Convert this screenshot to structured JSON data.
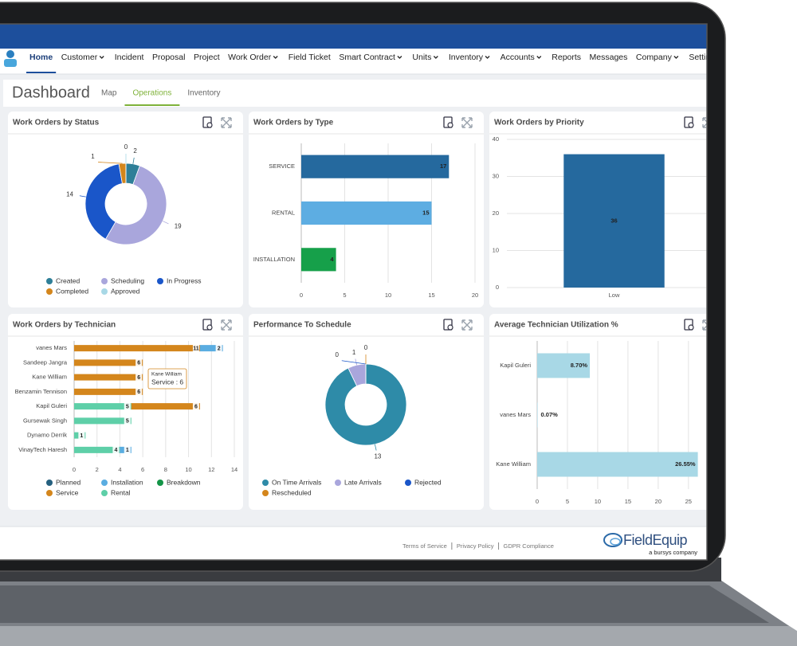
{
  "nav": {
    "items": [
      {
        "label": "Home"
      },
      {
        "label": "Customer",
        "dropdown": true
      },
      {
        "label": "Incident"
      },
      {
        "label": "Proposal"
      },
      {
        "label": "Project"
      },
      {
        "label": "Work Order",
        "dropdown": true
      },
      {
        "label": "Field Ticket"
      },
      {
        "label": "Smart Contract",
        "dropdown": true
      },
      {
        "label": "Units",
        "dropdown": true
      },
      {
        "label": "Inventory",
        "dropdown": true
      },
      {
        "label": "Accounts",
        "dropdown": true
      },
      {
        "label": "Reports"
      },
      {
        "label": "Messages"
      },
      {
        "label": "Company",
        "dropdown": true
      },
      {
        "label": "Settings"
      }
    ]
  },
  "header": {
    "title": "Dashboard",
    "tabs": [
      "Map",
      "Operations",
      "Inventory"
    ]
  },
  "chart_data": [
    {
      "type": "donut",
      "title": "Work Orders by Status",
      "series": [
        {
          "name": "Created",
          "color": "#2e7f98",
          "values": [
            2
          ]
        },
        {
          "name": "Scheduling",
          "color": "#a9a6dc",
          "values": [
            19
          ]
        },
        {
          "name": "In Progress",
          "color": "#1a56c9",
          "values": [
            14
          ]
        },
        {
          "name": "Completed",
          "color": "#d4861c",
          "values": [
            1
          ]
        },
        {
          "name": "Approved",
          "color": "#a8d8e6",
          "values": [
            0
          ]
        }
      ]
    },
    {
      "type": "hbar",
      "title": "Work Orders by Type",
      "categories": [
        "SERVICE",
        "RENTAL",
        "INSTALLATION"
      ],
      "values": [
        17,
        15,
        4
      ],
      "colors": [
        "#25699e",
        "#5dade2",
        "#16a04a"
      ],
      "xlim": [
        0,
        20
      ],
      "xticks": [
        0,
        5,
        10,
        15,
        20
      ],
      "grid": true
    },
    {
      "type": "bar",
      "title": "Work Orders by Priority",
      "categories": [
        "Low"
      ],
      "values": [
        36
      ],
      "color": "#25699e",
      "ylim": [
        0,
        40
      ],
      "yticks": [
        0,
        10,
        20,
        30,
        40
      ],
      "grid": true
    },
    {
      "type": "stacked-hbar",
      "title": "Work Orders by Technician",
      "categories": [
        "vanes Mars",
        "Sandeep Jangra",
        "Kane William",
        "Benzamin Tennison",
        "Kapil Guleri",
        "Gursewak Singh",
        "Dynamo Derrik",
        "VinayTech Haresh"
      ],
      "series": [
        {
          "name": "Planned",
          "color": "#25607f",
          "values": [
            null,
            null,
            null,
            null,
            null,
            null,
            null,
            null
          ]
        },
        {
          "name": "Installation",
          "color": "#5aade1",
          "values": [
            2,
            null,
            null,
            null,
            null,
            null,
            null,
            1
          ]
        },
        {
          "name": "Breakdown",
          "color": "#149447",
          "values": [
            null,
            null,
            null,
            null,
            null,
            null,
            null,
            null
          ]
        },
        {
          "name": "Service",
          "color": "#d4861c",
          "values": [
            11,
            6,
            6,
            6,
            6,
            null,
            null,
            null
          ]
        },
        {
          "name": "Rental",
          "color": "#5ecfa8",
          "values": [
            null,
            null,
            null,
            null,
            5,
            5,
            1,
            4
          ]
        }
      ],
      "xlim": [
        0,
        14
      ],
      "xticks": [
        0,
        2,
        4,
        6,
        8,
        10,
        12,
        14
      ],
      "grid": true,
      "tooltip": {
        "title": "Kane William",
        "text": "Service : 6"
      }
    },
    {
      "type": "donut",
      "title": "Performance To Schedule",
      "series": [
        {
          "name": "On Time Arrivals",
          "color": "#2e8ba8",
          "values": [
            13
          ]
        },
        {
          "name": "Late Arrivals",
          "color": "#a9a6dc",
          "values": [
            1
          ]
        },
        {
          "name": "Rejected",
          "color": "#1a56c9",
          "values": [
            0
          ]
        },
        {
          "name": "Rescheduled",
          "color": "#d4861c",
          "values": [
            0
          ]
        }
      ]
    },
    {
      "type": "hbar",
      "title": "Average Technician Utilization %",
      "categories": [
        "Kapil Guleri",
        "vanes Mars",
        "Kane William"
      ],
      "values": [
        8.7,
        0.07,
        26.55
      ],
      "value_labels": [
        "8.70%",
        "0.07%",
        "26.55%"
      ],
      "color": "#a8d8e6",
      "xlim": [
        0,
        27
      ],
      "xticks": [
        0,
        5,
        10,
        15,
        20,
        25
      ],
      "grid": true
    }
  ],
  "footer": {
    "links": [
      "Terms of Service",
      "Privacy Policy",
      "GDPR Compliance"
    ],
    "brand": "FieldEquip",
    "tagline": "a bursys company"
  }
}
